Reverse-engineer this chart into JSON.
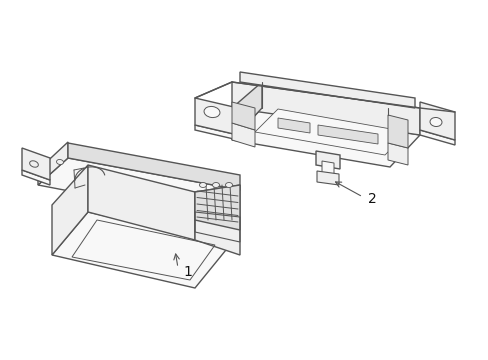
{
  "background_color": "#ffffff",
  "line_color": "#555555",
  "line_width": 1.0,
  "label_1": "1",
  "label_2": "2",
  "label_fontsize": 10,
  "label_color": "#111111",
  "fig_width": 4.89,
  "fig_height": 3.6,
  "dpi": 100
}
